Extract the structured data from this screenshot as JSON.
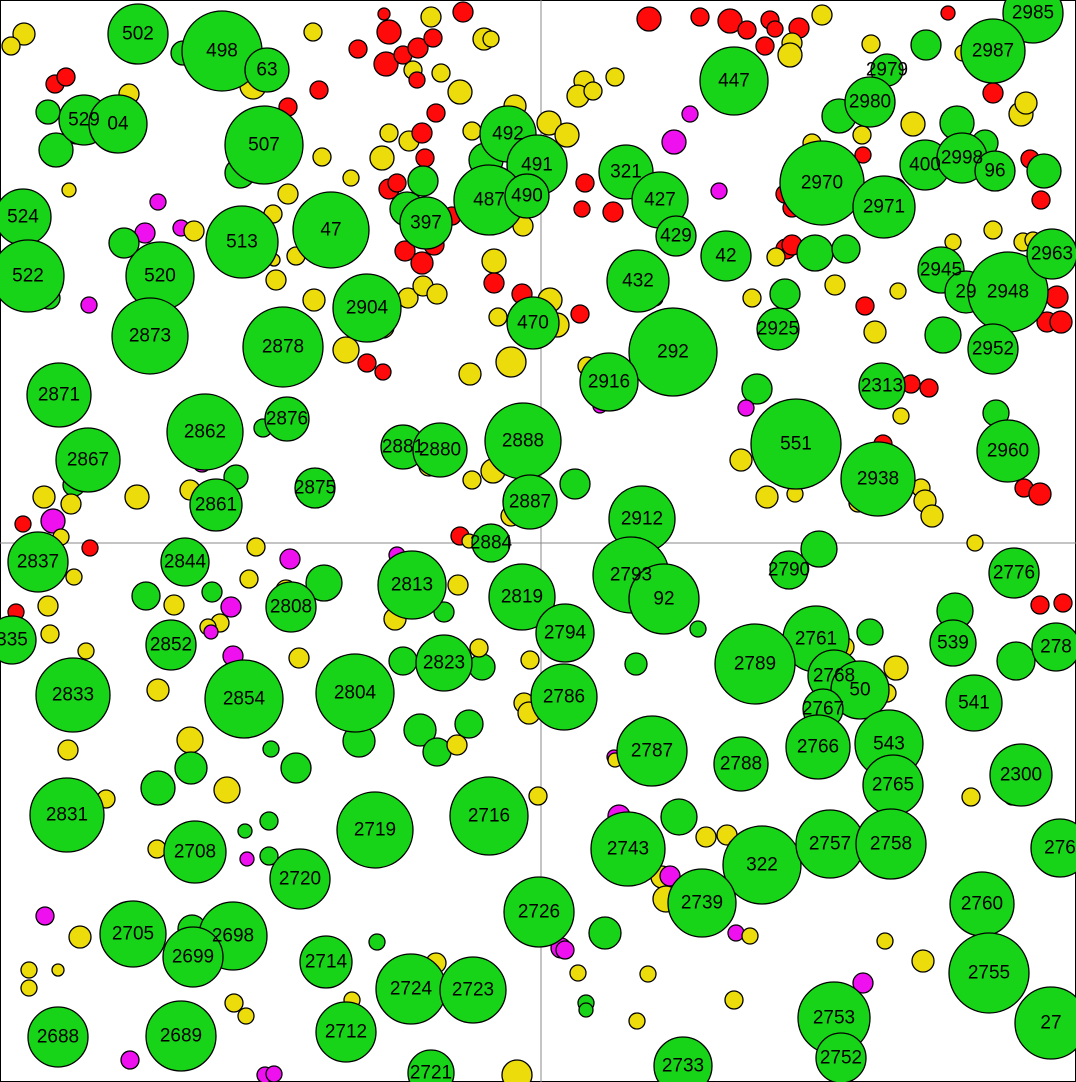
{
  "colors": {
    "green": "#18d418",
    "yellow": "#ecdc0c",
    "red": "#ff0a0a",
    "magenta": "#ef10ef",
    "grid": "#8a8a8a",
    "background": "#ffffff"
  },
  "labeled_nodes": [
    {
      "label": "502"
    },
    {
      "label": "498"
    },
    {
      "label": "63"
    },
    {
      "label": "529"
    },
    {
      "label": "04"
    },
    {
      "label": "507"
    },
    {
      "label": "492"
    },
    {
      "label": "491"
    },
    {
      "label": "487"
    },
    {
      "label": "490"
    },
    {
      "label": "524"
    },
    {
      "label": "513"
    },
    {
      "label": "47"
    },
    {
      "label": "397"
    },
    {
      "label": "522"
    },
    {
      "label": "520"
    },
    {
      "label": "2873"
    },
    {
      "label": "2878"
    },
    {
      "label": "2904"
    },
    {
      "label": "470"
    },
    {
      "label": "2871"
    },
    {
      "label": "2862"
    },
    {
      "label": "2876"
    },
    {
      "label": "2867"
    },
    {
      "label": "2861"
    },
    {
      "label": "2875"
    },
    {
      "label": "2881"
    },
    {
      "label": "2880"
    },
    {
      "label": "2888"
    },
    {
      "label": "2887"
    },
    {
      "label": "2884"
    },
    {
      "label": "447"
    },
    {
      "label": "2985"
    },
    {
      "label": "2987"
    },
    {
      "label": "2979"
    },
    {
      "label": "2980"
    },
    {
      "label": "321"
    },
    {
      "label": "427"
    },
    {
      "label": "429"
    },
    {
      "label": "2970"
    },
    {
      "label": "400"
    },
    {
      "label": "2998"
    },
    {
      "label": "96"
    },
    {
      "label": "2971"
    },
    {
      "label": "42"
    },
    {
      "label": "432"
    },
    {
      "label": "2945"
    },
    {
      "label": "29"
    },
    {
      "label": "2948"
    },
    {
      "label": "2963"
    },
    {
      "label": "2925"
    },
    {
      "label": "292"
    },
    {
      "label": "2952"
    },
    {
      "label": "2916"
    },
    {
      "label": "2313"
    },
    {
      "label": "551"
    },
    {
      "label": "2960"
    },
    {
      "label": "2938"
    },
    {
      "label": "2912"
    },
    {
      "label": "2837"
    },
    {
      "label": "2844"
    },
    {
      "label": "2813"
    },
    {
      "label": "2808"
    },
    {
      "label": "335"
    },
    {
      "label": "2852"
    },
    {
      "label": "2819"
    },
    {
      "label": "2794"
    },
    {
      "label": "2823"
    },
    {
      "label": "2833"
    },
    {
      "label": "2854"
    },
    {
      "label": "2804"
    },
    {
      "label": "2786"
    },
    {
      "label": "2793"
    },
    {
      "label": "92"
    },
    {
      "label": "2790"
    },
    {
      "label": "2776"
    },
    {
      "label": "2761"
    },
    {
      "label": "539"
    },
    {
      "label": "278"
    },
    {
      "label": "2789"
    },
    {
      "label": "2768"
    },
    {
      "label": "50"
    },
    {
      "label": "2767"
    },
    {
      "label": "541"
    },
    {
      "label": "2787"
    },
    {
      "label": "2788"
    },
    {
      "label": "2766"
    },
    {
      "label": "543"
    },
    {
      "label": "2765"
    },
    {
      "label": "2300"
    },
    {
      "label": "2831"
    },
    {
      "label": "2719"
    },
    {
      "label": "2716"
    },
    {
      "label": "2708"
    },
    {
      "label": "2720"
    },
    {
      "label": "2743"
    },
    {
      "label": "322"
    },
    {
      "label": "2757"
    },
    {
      "label": "2758"
    },
    {
      "label": "276"
    },
    {
      "label": "2739"
    },
    {
      "label": "2726"
    },
    {
      "label": "2760"
    },
    {
      "label": "2705"
    },
    {
      "label": "2698"
    },
    {
      "label": "2699"
    },
    {
      "label": "2714"
    },
    {
      "label": "2724"
    },
    {
      "label": "2723"
    },
    {
      "label": "2755"
    },
    {
      "label": "2688"
    },
    {
      "label": "2689"
    },
    {
      "label": "2712"
    },
    {
      "label": "2721"
    },
    {
      "label": "2733"
    },
    {
      "label": "2753"
    },
    {
      "label": "2752"
    },
    {
      "label": "27"
    }
  ]
}
